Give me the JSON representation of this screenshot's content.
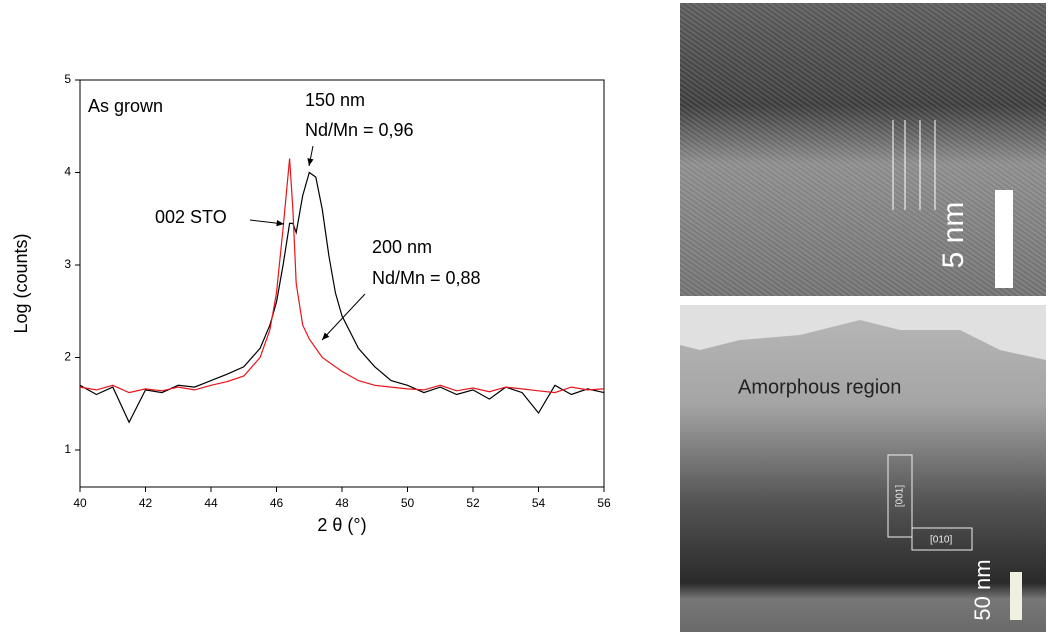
{
  "chart_data": {
    "type": "line",
    "xlabel": "2 θ (°)",
    "ylabel": "Log (counts)",
    "x": [
      40,
      40.5,
      41,
      41.5,
      42,
      42.5,
      43,
      43.5,
      44,
      44.5,
      45,
      45.5,
      45.8,
      46,
      46.2,
      46.4,
      46.5,
      46.6,
      46.8,
      47,
      47.2,
      47.4,
      47.6,
      47.8,
      48,
      48.5,
      49,
      49.5,
      50,
      50.5,
      51,
      51.5,
      52,
      52.5,
      53,
      53.5,
      54,
      54.5,
      55,
      55.5,
      56
    ],
    "series": [
      {
        "name": "150 nm",
        "color": "#000000",
        "values": [
          1.7,
          1.6,
          1.68,
          1.3,
          1.65,
          1.62,
          1.7,
          1.68,
          1.75,
          1.82,
          1.9,
          2.1,
          2.35,
          2.6,
          3.0,
          3.45,
          3.45,
          3.35,
          3.75,
          4.0,
          3.95,
          3.6,
          3.1,
          2.7,
          2.45,
          2.1,
          1.9,
          1.75,
          1.7,
          1.62,
          1.68,
          1.6,
          1.65,
          1.55,
          1.68,
          1.62,
          1.4,
          1.7,
          1.6,
          1.66,
          1.62
        ]
      },
      {
        "name": "200 nm",
        "color": "#e8141a",
        "values": [
          1.68,
          1.65,
          1.7,
          1.62,
          1.66,
          1.64,
          1.68,
          1.65,
          1.7,
          1.74,
          1.8,
          2.0,
          2.3,
          2.7,
          3.4,
          4.15,
          3.6,
          2.8,
          2.35,
          2.2,
          2.1,
          2.0,
          1.95,
          1.9,
          1.85,
          1.75,
          1.7,
          1.68,
          1.66,
          1.65,
          1.7,
          1.64,
          1.67,
          1.63,
          1.68,
          1.66,
          1.64,
          1.62,
          1.68,
          1.65,
          1.66
        ]
      }
    ],
    "xlim": [
      40,
      56
    ],
    "xticks": [
      40,
      42,
      44,
      46,
      48,
      50,
      52,
      54,
      56
    ],
    "ylim": [
      0.6,
      5
    ],
    "yticks": [
      1,
      2,
      3,
      4,
      5
    ],
    "annotations": [
      "As grown",
      "150 nm",
      "Nd/Mn = 0,96",
      "002 STO",
      "200 nm",
      "Nd/Mn = 0,88"
    ]
  },
  "images": [
    {
      "label": "5 nm"
    },
    {
      "label": "Amorphous region",
      "axes": [
        "[001]",
        "[010]"
      ],
      "scale": "50 nm"
    }
  ]
}
